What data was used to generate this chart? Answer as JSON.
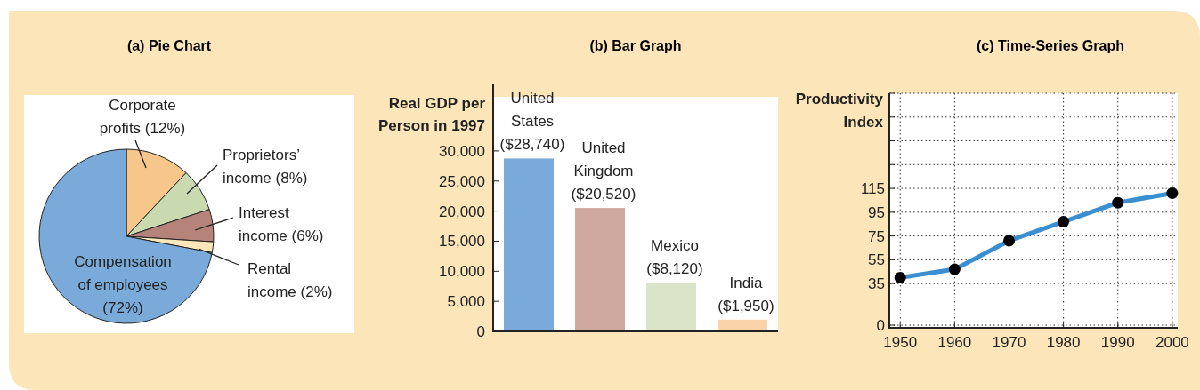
{
  "chart_data": [
    {
      "type": "pie",
      "title": "(a) Pie Chart",
      "categories": [
        "Corporate profits",
        "Proprietors’ income",
        "Interest income",
        "Rental income",
        "Compensation of employees"
      ],
      "values": [
        12,
        8,
        6,
        2,
        72
      ],
      "value_labels": [
        "(12%)",
        "(8%)",
        "(6%)",
        "(2%)",
        "(72%)"
      ],
      "colors": [
        "#f6c68a",
        "#c9d9b0",
        "#b5837a",
        "#fbe7b8",
        "#7aaad9"
      ]
    },
    {
      "type": "bar",
      "title": "(b) Bar Graph",
      "ylabel": "Real GDP per Person in 1997",
      "categories": [
        "United States",
        "United Kingdom",
        "Mexico",
        "India"
      ],
      "values": [
        28740,
        20520,
        8120,
        1950
      ],
      "value_labels": [
        "($28,740)",
        "($20,520)",
        "($8,120)",
        "($1,950)"
      ],
      "colors": [
        "#7aaad9",
        "#cfa8a0",
        "#dbe4c8",
        "#f8d4a8"
      ],
      "ylim": [
        0,
        39000
      ],
      "yticks": [
        {
          "value": 0,
          "label": "0"
        },
        {
          "value": 5000,
          "label": "5,000"
        },
        {
          "value": 10000,
          "label": "10,000"
        },
        {
          "value": 15000,
          "label": "15,000"
        },
        {
          "value": 20000,
          "label": "20,000"
        },
        {
          "value": 25000,
          "label": "25,000"
        },
        {
          "value": 30000,
          "label": "30,000"
        }
      ],
      "tick_labels": "y"
    },
    {
      "type": "line",
      "title": "(c) Time-Series Graph",
      "ylabel": "Productivity Index",
      "x": [
        1950,
        1960,
        1970,
        1980,
        1990,
        2000
      ],
      "series": [
        {
          "color": "#3a8fd0",
          "values": [
            40,
            47,
            71,
            87,
            103,
            111
          ]
        }
      ],
      "xlim": [
        1948,
        2001
      ],
      "xticks": [
        1950,
        1960,
        1970,
        1980,
        1990,
        2000
      ],
      "ylim": [
        0,
        195
      ],
      "yticks": [
        0,
        35,
        55,
        75,
        95,
        115,
        {
          "value": 135,
          "label": null
        },
        {
          "value": 155,
          "label": null
        },
        {
          "value": 175,
          "label": null
        },
        {
          "value": 195,
          "label": null
        }
      ],
      "grid": true,
      "marker": "circle"
    }
  ]
}
